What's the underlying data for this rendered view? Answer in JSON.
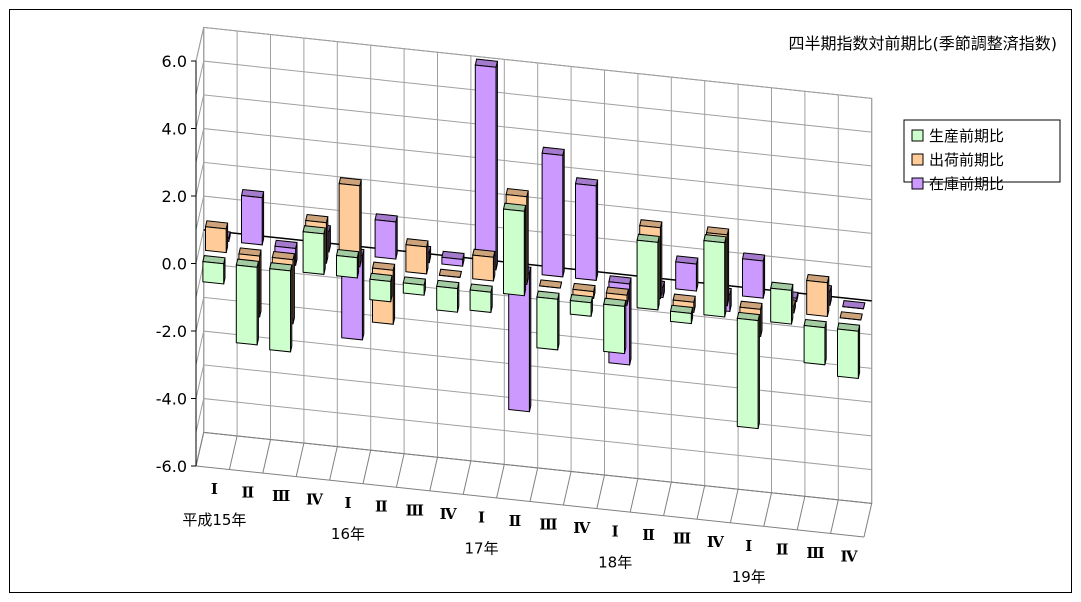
{
  "chart_data": {
    "type": "bar",
    "title": "四半期指数対前期比(季節調整済指数)",
    "ylim": [
      -6.0,
      6.0
    ],
    "yticks": [
      "6.0",
      "4.0",
      "2.0",
      "0.0",
      "-2.0",
      "-4.0",
      "-6.0"
    ],
    "categories": [
      "Ⅰ",
      "Ⅱ",
      "Ⅲ",
      "Ⅳ",
      "Ⅰ",
      "Ⅱ",
      "Ⅲ",
      "Ⅳ",
      "Ⅰ",
      "Ⅱ",
      "Ⅲ",
      "Ⅳ",
      "Ⅰ",
      "Ⅱ",
      "Ⅲ",
      "Ⅳ",
      "Ⅰ",
      "Ⅱ",
      "Ⅲ",
      "Ⅳ"
    ],
    "year_labels": [
      {
        "label": "平成15年",
        "index": 0
      },
      {
        "label": "16年",
        "index": 4
      },
      {
        "label": "17年",
        "index": 8
      },
      {
        "label": "18年",
        "index": 12
      },
      {
        "label": "19年",
        "index": 16
      }
    ],
    "legend_position": "top-right",
    "grid": true,
    "series": [
      {
        "name": "生産前期比",
        "color": "#ccffcc",
        "values": [
          -0.6,
          -2.3,
          -2.4,
          1.2,
          0.6,
          -0.6,
          -0.3,
          -0.7,
          -0.6,
          2.5,
          -1.5,
          -0.4,
          -1.4,
          2.0,
          -0.3,
          2.2,
          -3.2,
          1.0,
          -1.1,
          -1.4
        ]
      },
      {
        "name": "出荷前期比",
        "color": "#ffcc99",
        "values": [
          0.7,
          -1.8,
          -1.9,
          1.2,
          2.4,
          -1.6,
          0.8,
          0.0,
          0.7,
          2.6,
          0.0,
          -0.2,
          -0.3,
          2.1,
          -0.3,
          2.1,
          -0.8,
          0.2,
          1.0,
          0.0
        ]
      },
      {
        "name": "在庫前期比",
        "color": "#cc99ff",
        "values": [
          0.1,
          1.4,
          -0.5,
          0.6,
          -2.5,
          1.1,
          0.3,
          0.2,
          6.0,
          -4.1,
          3.6,
          2.8,
          -2.4,
          -0.3,
          0.8,
          -0.5,
          1.1,
          0.1,
          0.4,
          0.0
        ]
      }
    ]
  }
}
